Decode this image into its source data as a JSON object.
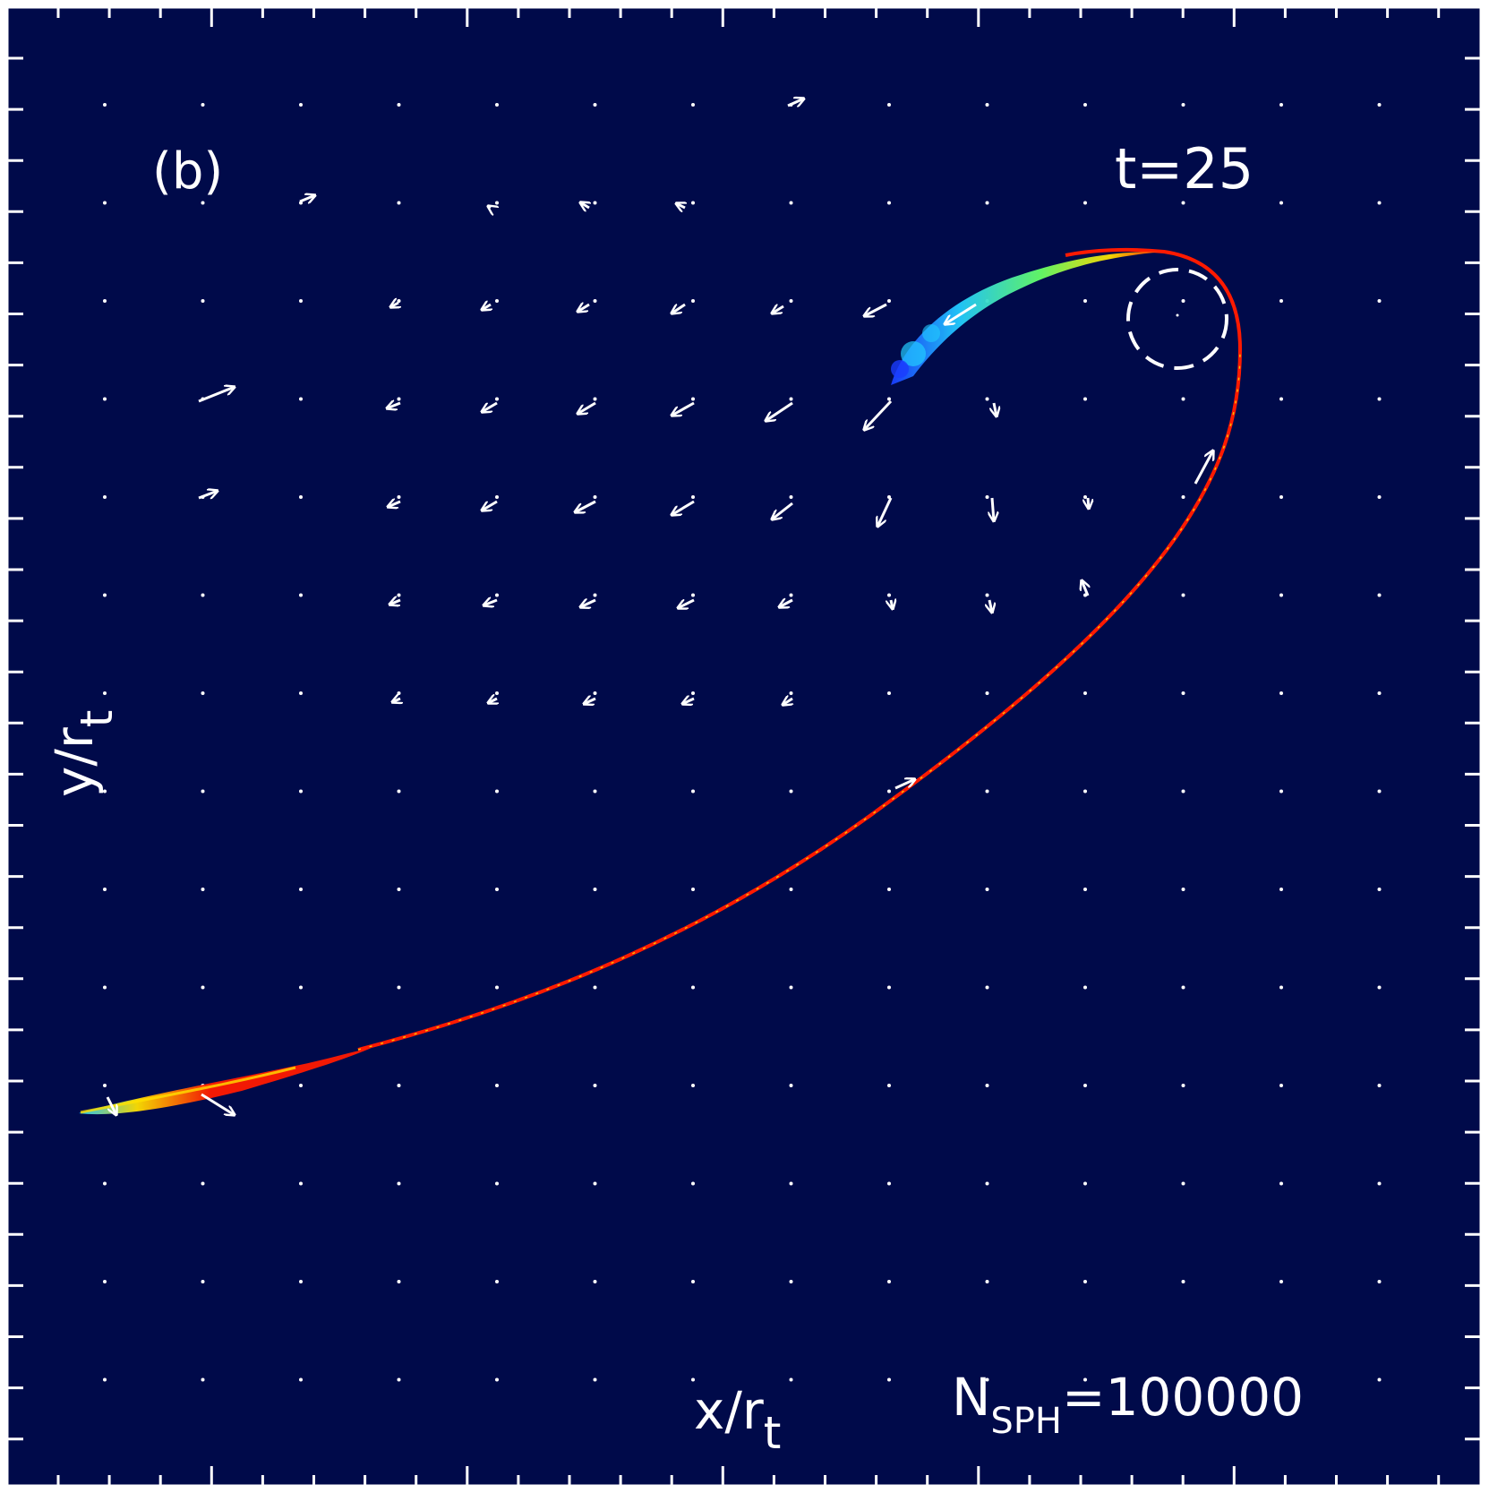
{
  "panel_label": "(b)",
  "time_label": "t=25",
  "x_label": "x/r",
  "x_label_sub": "t",
  "y_label": "y/r",
  "y_label_sub": "t",
  "n_label": "N",
  "n_label_sub": "SPH",
  "n_label_value": "=100000",
  "colors": {
    "background": "#000a4a",
    "frame": "#ffffff",
    "stream_red": "#ff1a00",
    "stream_yellow": "#ffe000",
    "stream_green": "#66ff66",
    "stream_cyan": "#22ccff",
    "stream_blue": "#1a3cff"
  }
}
